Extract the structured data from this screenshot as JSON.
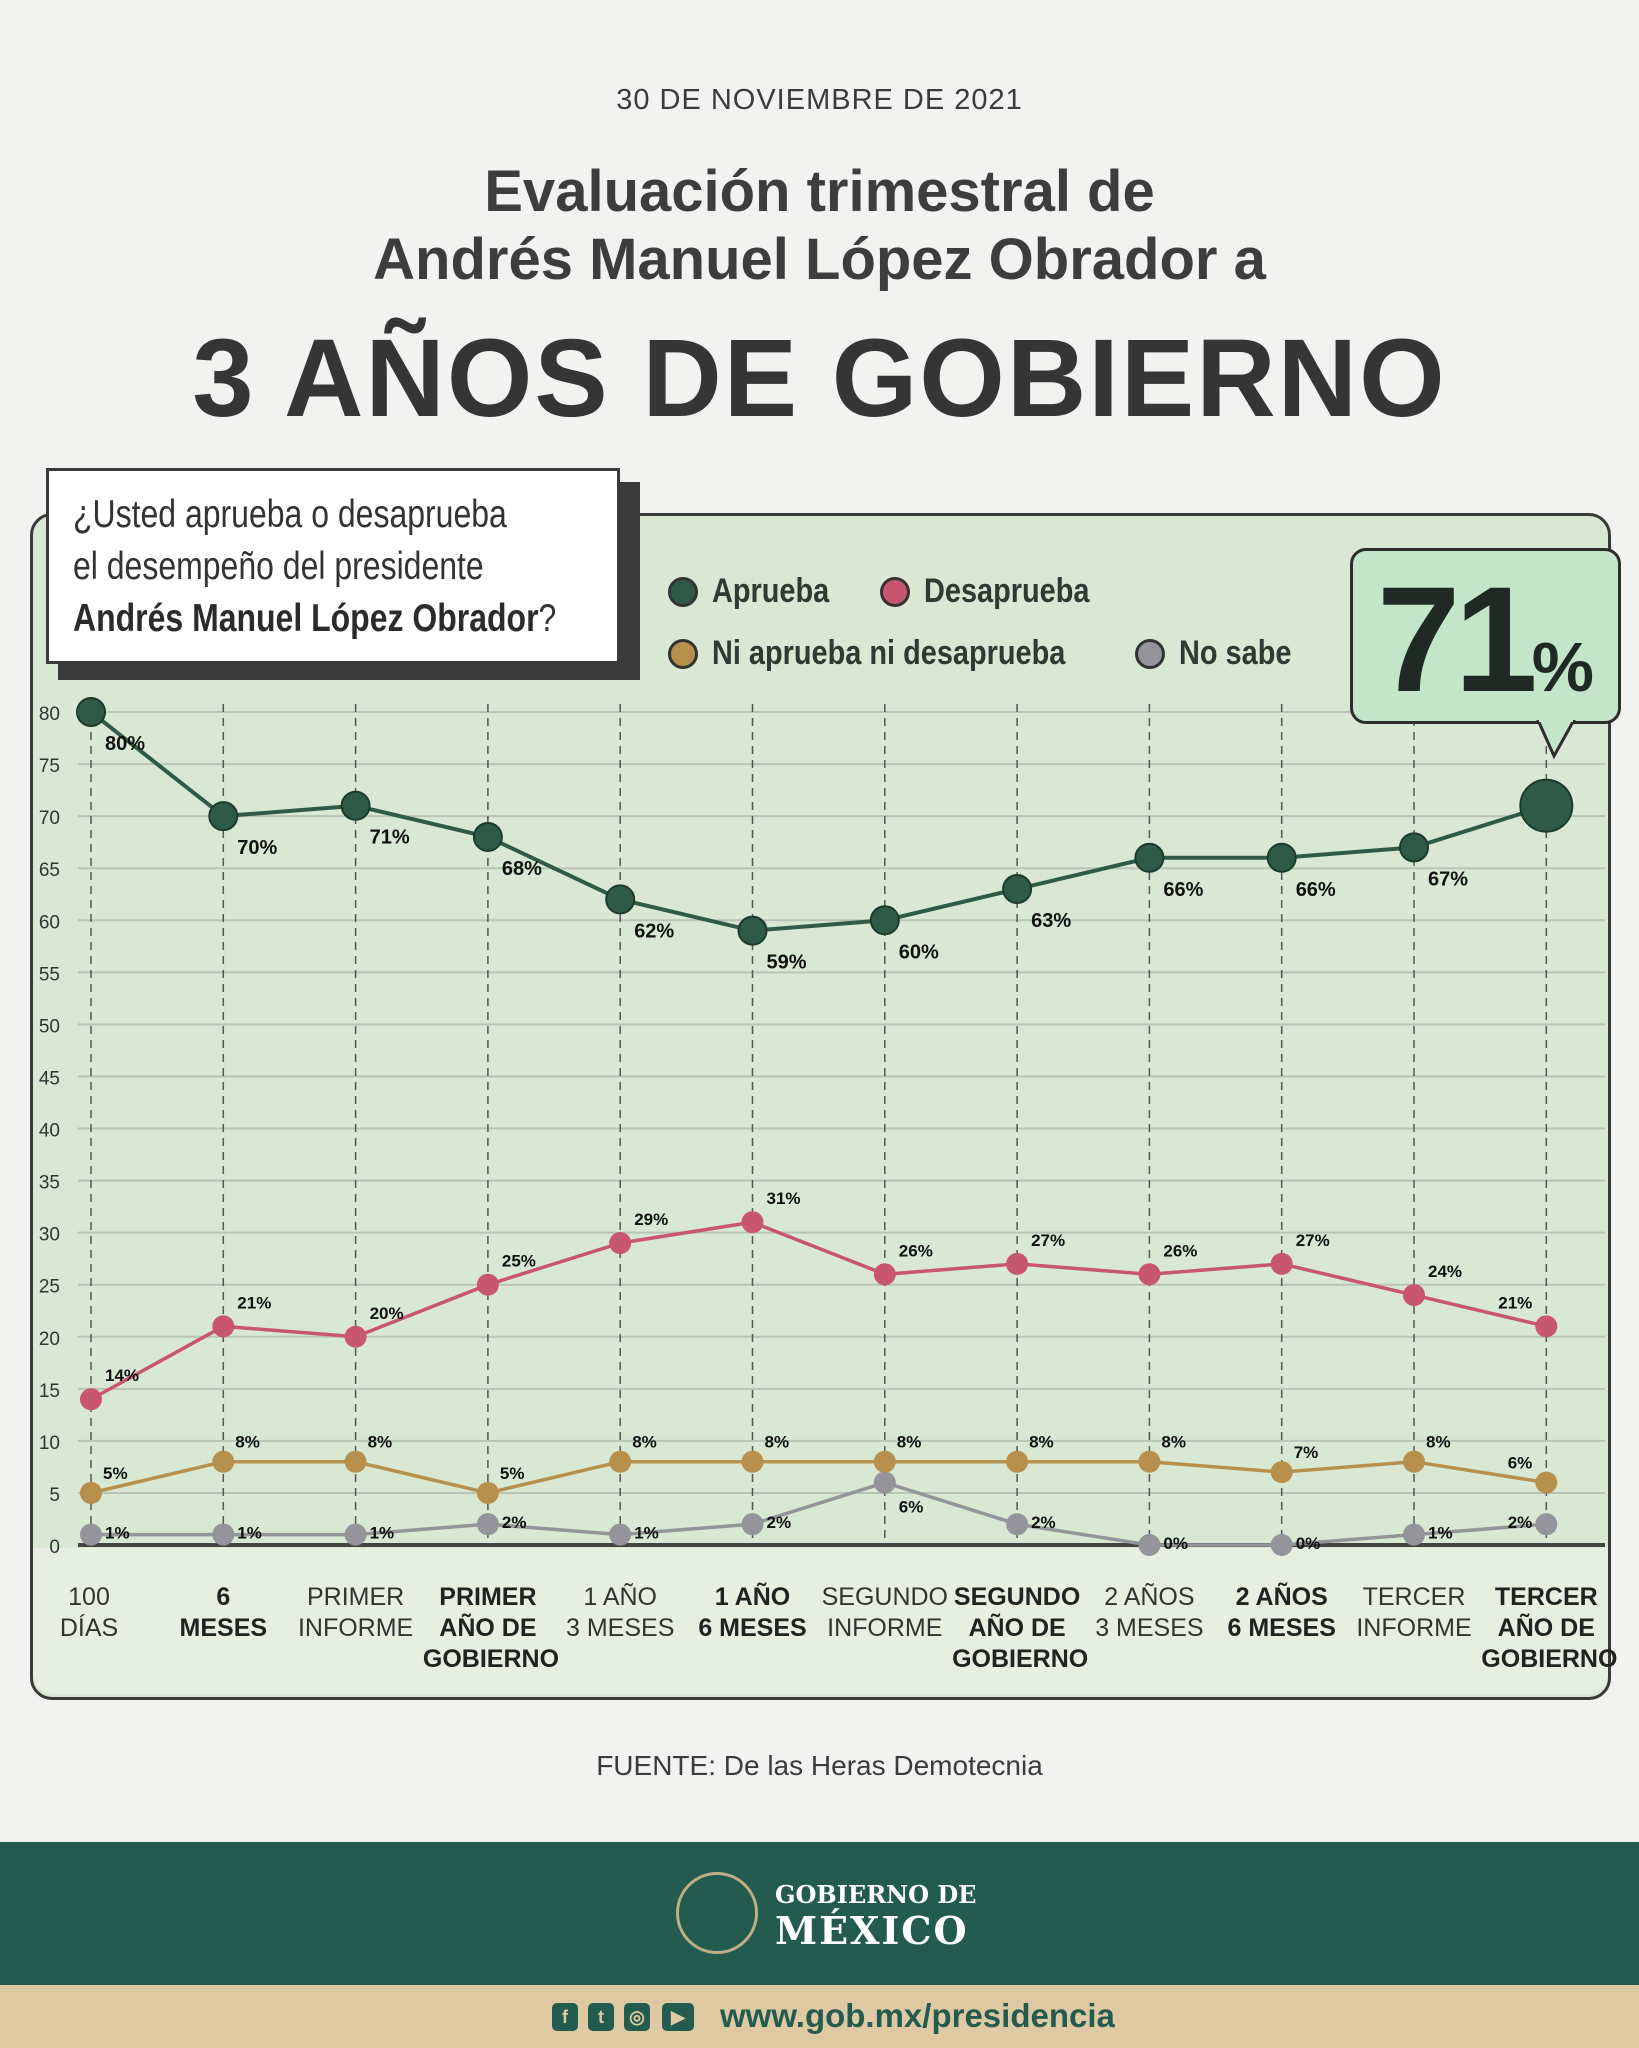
{
  "header": {
    "date": "30 DE NOVIEMBRE DE 2021",
    "title_line1": "Evaluación trimestral de",
    "title_line2": "Andrés Manuel López Obrador a",
    "title_big": "3 AÑOS DE GOBIERNO"
  },
  "question": {
    "line1": "¿Usted aprueba o desaprueba",
    "line2": "el desempeño del presidente",
    "line3_bold": "Andrés Manuel López Obrador",
    "line3_end": "?"
  },
  "highlight": {
    "value": "71",
    "unit": "%"
  },
  "source": "FUENTE: De las Heras Demotecnia",
  "footer": {
    "brand_line1": "GOBIERNO DE",
    "brand_line2": "MÉXICO",
    "url": "www.gob.mx/presidencia",
    "social_icons": [
      "facebook-icon",
      "twitter-icon",
      "instagram-icon",
      "youtube-icon"
    ]
  },
  "chart_data": {
    "type": "line",
    "categories": [
      "100 DÍAS",
      "6 MESES",
      "PRIMER INFORME",
      "PRIMER AÑO DE GOBIERNO",
      "1 AÑO 3 MESES",
      "1 AÑO 6 MESES",
      "SEGUNDO INFORME",
      "SEGUNDO AÑO DE GOBIERNO",
      "2 AÑOS 3 MESES",
      "2 AÑOS 6 MESES",
      "TERCER INFORME",
      "TERCER AÑO DE GOBIERNO"
    ],
    "category_lines": [
      [
        "100",
        "DÍAS"
      ],
      [
        "6",
        "MESES"
      ],
      [
        "PRIMER",
        "INFORME"
      ],
      [
        "PRIMER",
        "AÑO DE",
        "GOBIERNO"
      ],
      [
        "1 AÑO",
        "3 MESES"
      ],
      [
        "1 AÑO",
        "6 MESES"
      ],
      [
        "SEGUNDO",
        "INFORME"
      ],
      [
        "SEGUNDO",
        "AÑO DE",
        "GOBIERNO"
      ],
      [
        "2 AÑOS",
        "3 MESES"
      ],
      [
        "2 AÑOS",
        "6 MESES"
      ],
      [
        "TERCER",
        "INFORME"
      ],
      [
        "TERCER",
        "AÑO DE",
        "GOBIERNO"
      ]
    ],
    "bold_categories": [
      1,
      3,
      5,
      7,
      9,
      11
    ],
    "ylim": [
      0,
      80
    ],
    "yticks": [
      0,
      5,
      10,
      15,
      20,
      25,
      30,
      35,
      40,
      45,
      50,
      55,
      60,
      65,
      70,
      75,
      80
    ],
    "grid": true,
    "legend_position": "top",
    "series": [
      {
        "name": "Aprueba",
        "color": "#2f5a48",
        "values": [
          80,
          70,
          71,
          68,
          62,
          59,
          60,
          63,
          66,
          66,
          67,
          71
        ]
      },
      {
        "name": "Desaprueba",
        "color": "#c9566f",
        "values": [
          14,
          21,
          20,
          25,
          29,
          31,
          26,
          27,
          26,
          27,
          24,
          21
        ]
      },
      {
        "name": "Ni aprueba ni desaprueba",
        "color": "#b8904e",
        "values": [
          5,
          8,
          8,
          5,
          8,
          8,
          8,
          8,
          8,
          7,
          8,
          6
        ]
      },
      {
        "name": "No sabe",
        "color": "#94949a",
        "values": [
          1,
          1,
          1,
          2,
          1,
          2,
          6,
          2,
          0,
          0,
          1,
          2
        ]
      }
    ]
  }
}
